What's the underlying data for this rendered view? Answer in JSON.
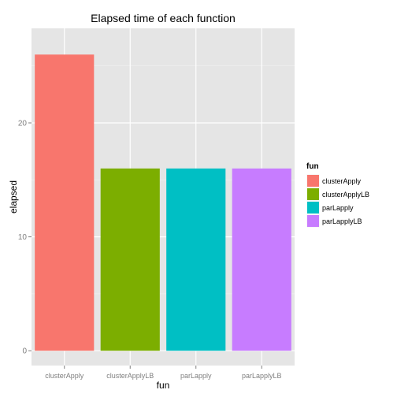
{
  "chart_data": {
    "type": "bar",
    "title": "Elapsed time of each function",
    "xlabel": "fun",
    "ylabel": "elapsed",
    "categories": [
      "clusterApply",
      "clusterApplyLB",
      "parLapply",
      "parLapplyLB"
    ],
    "values": [
      26,
      16,
      16,
      16
    ],
    "colors": [
      "#F8766D",
      "#7CAE00",
      "#00BFC4",
      "#C77CFF"
    ],
    "ylim": [
      -1.3,
      28.3
    ],
    "yticks": [
      0,
      10,
      20
    ],
    "grid": true,
    "panel_background": "#E5E5E5",
    "legend": {
      "title": "fun",
      "placement": "right",
      "entries": [
        "clusterApply",
        "clusterApplyLB",
        "parLapply",
        "parLapplyLB"
      ]
    }
  }
}
